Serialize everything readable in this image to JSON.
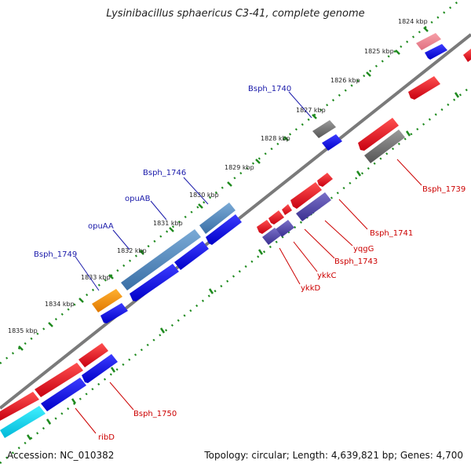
{
  "title": "Lysinibacillus sphaericus C3-41, complete genome",
  "footer": {
    "accession": "Accession: NC_010382",
    "summary": "Topology: circular; Length: 4,639,821 bp; Genes: 4,700"
  },
  "colors": {
    "backbone": "#7a7a7a",
    "dots": "#1e8a1e",
    "forward_cds": "#e6001a",
    "reverse_cds": "#0a0ae6",
    "pseudo": "#6e6e6e",
    "label_blue": "#1a1aaa",
    "label_red": "#cc0000"
  },
  "ticks": [
    {
      "label": "1824 kbp"
    },
    {
      "label": "1825 kbp"
    },
    {
      "label": "1826 kbp"
    },
    {
      "label": "1827 kbp"
    },
    {
      "label": "1828 kbp"
    },
    {
      "label": "1829 kbp"
    },
    {
      "label": "1830 kbp"
    },
    {
      "label": "1831 kbp"
    },
    {
      "label": "1832 kbp"
    },
    {
      "label": "1833 kbp"
    },
    {
      "label": "1834 kbp"
    },
    {
      "label": "1835 kbp"
    }
  ],
  "labels_outer": [
    {
      "text": "Bsph_1740"
    },
    {
      "text": "Bsph_1746"
    },
    {
      "text": "opuAB"
    },
    {
      "text": "opuAA"
    },
    {
      "text": "Bsph_1749"
    }
  ],
  "labels_inner": [
    {
      "text": "Bsph_1739"
    },
    {
      "text": "Bsph_1741"
    },
    {
      "text": "yqgG"
    },
    {
      "text": "Bsph_1743"
    },
    {
      "text": "ykkC"
    },
    {
      "text": "ykkD"
    },
    {
      "text": "Bsph_1750"
    },
    {
      "text": "ribD"
    }
  ]
}
